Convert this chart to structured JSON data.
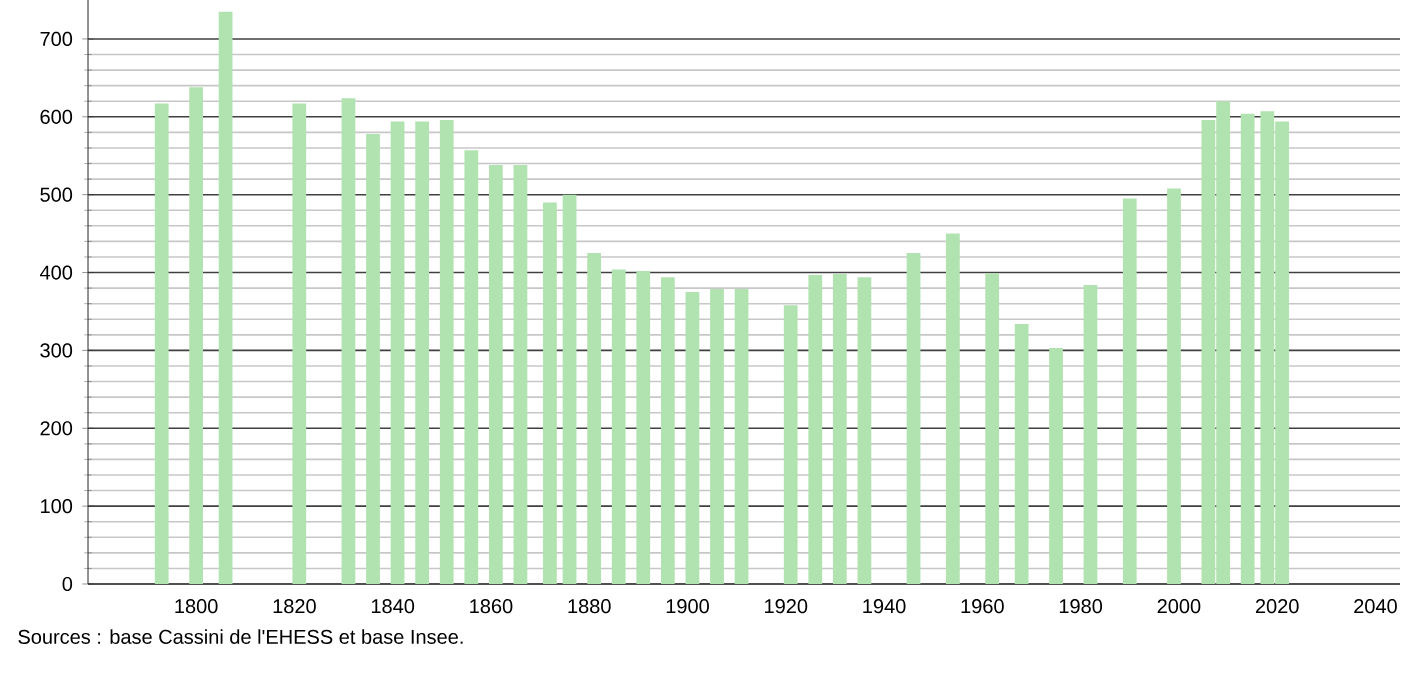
{
  "chart_data": {
    "type": "bar",
    "color": "#b0e3b0",
    "x": [
      1793,
      1800,
      1806,
      1821,
      1831,
      1836,
      1841,
      1846,
      1851,
      1856,
      1861,
      1866,
      1872,
      1876,
      1881,
      1886,
      1891,
      1896,
      1901,
      1906,
      1911,
      1921,
      1926,
      1931,
      1936,
      1946,
      1954,
      1962,
      1968,
      1975,
      1982,
      1990,
      1999,
      2006,
      2009,
      2014,
      2018,
      2021
    ],
    "values": [
      617,
      638,
      735,
      617,
      624,
      578,
      594,
      594,
      596,
      557,
      538,
      538,
      490,
      500,
      425,
      404,
      402,
      394,
      375,
      379,
      379,
      358,
      397,
      398,
      394,
      425,
      450,
      399,
      334,
      303,
      384,
      495,
      508,
      596,
      620,
      604,
      607,
      594
    ],
    "xlim": [
      1778,
      2045
    ],
    "ylim": [
      0,
      750
    ],
    "xticks": [
      1800,
      1820,
      1840,
      1860,
      1880,
      1900,
      1920,
      1940,
      1960,
      1980,
      2000,
      2020,
      2040
    ],
    "yticks": [
      0,
      100,
      200,
      300,
      400,
      500,
      600,
      700
    ],
    "grid": "y",
    "annotations": [
      "Sources : base Cassini de l'EHESS et base Insee."
    ]
  }
}
